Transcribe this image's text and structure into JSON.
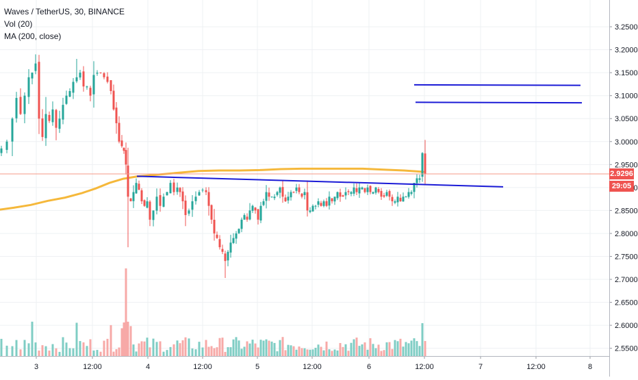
{
  "legend": {
    "symbol": "Waves / TetherUS, 30, BINANCE",
    "volume": "Vol (20)",
    "ma": "MA (200, close)"
  },
  "badges": {
    "last_price": "2.9296",
    "countdown": "29:05"
  },
  "colors": {
    "up": "#26a69a",
    "down": "#ef5350",
    "up_vol": "#7fcdc4",
    "down_vol": "#f7a9a7",
    "ma": "#f5b83b",
    "drawing": "#1a1ad6",
    "price_line": "#f59a87",
    "grid": "#eef0f3",
    "axis_text": "#131722"
  },
  "chart_data": {
    "type": "candlestick",
    "symbol": "Waves / TetherUS",
    "interval": "30",
    "exchange": "BINANCE",
    "y_axis": {
      "ticks": [
        "3.2500",
        "3.2000",
        "3.1500",
        "3.1000",
        "3.0500",
        "3.0000",
        "2.9500",
        "2.9000",
        "2.8500",
        "2.8000",
        "2.7500",
        "2.7000",
        "2.6500",
        "2.6000",
        "2.5500"
      ],
      "ylim": [
        2.545,
        3.265
      ]
    },
    "x_axis": {
      "ticks": [
        "3",
        "12:00",
        "4",
        "12:00",
        "5",
        "12:00",
        "6",
        "12:00",
        "7",
        "12:00",
        "8"
      ]
    },
    "last_price": 2.9296,
    "grid": true,
    "volume_indicator": "Vol (20)",
    "ma_indicator": "MA (200, close)",
    "ma_path": [
      [
        0,
        2.852
      ],
      [
        20,
        2.856
      ],
      [
        45,
        2.862
      ],
      [
        70,
        2.871
      ],
      [
        95,
        2.878
      ],
      [
        120,
        2.888
      ],
      [
        140,
        2.898
      ],
      [
        160,
        2.91
      ],
      [
        180,
        2.919
      ],
      [
        200,
        2.924
      ],
      [
        230,
        2.928
      ],
      [
        260,
        2.932
      ],
      [
        290,
        2.936
      ],
      [
        320,
        2.937
      ],
      [
        350,
        2.937
      ],
      [
        380,
        2.938
      ],
      [
        410,
        2.94
      ],
      [
        440,
        2.941
      ],
      [
        470,
        2.941
      ],
      [
        500,
        2.941
      ],
      [
        530,
        2.941
      ],
      [
        560,
        2.939
      ],
      [
        590,
        2.937
      ],
      [
        610,
        2.935
      ],
      [
        618,
        2.934
      ]
    ],
    "drawings": [
      {
        "type": "trendline",
        "points": [
          [
            200,
            2.9245
          ],
          [
            735,
            2.9015
          ]
        ]
      },
      {
        "type": "horizontal",
        "points": [
          [
            605,
            3.1235
          ],
          [
            848,
            3.1225
          ]
        ]
      },
      {
        "type": "horizontal",
        "points": [
          [
            607,
            3.0855
          ],
          [
            850,
            3.0845
          ]
        ]
      }
    ],
    "candles_anchor_close": [
      [
        2,
        2.985
      ],
      [
        10,
        3.0
      ],
      [
        18,
        3.05
      ],
      [
        24,
        3.095
      ],
      [
        30,
        3.06
      ],
      [
        36,
        3.1
      ],
      [
        42,
        3.14
      ],
      [
        47,
        3.15
      ],
      [
        52,
        3.17
      ],
      [
        57,
        3.05
      ],
      [
        62,
        3.01
      ],
      [
        67,
        3.06
      ],
      [
        72,
        3.045
      ],
      [
        77,
        3.07
      ],
      [
        82,
        3.03
      ],
      [
        87,
        3.05
      ],
      [
        92,
        3.08
      ],
      [
        97,
        3.1
      ],
      [
        102,
        3.11
      ],
      [
        107,
        3.13
      ],
      [
        112,
        3.14
      ],
      [
        117,
        3.15
      ],
      [
        122,
        3.12
      ],
      [
        127,
        3.12
      ],
      [
        132,
        3.1
      ],
      [
        137,
        3.145
      ],
      [
        142,
        3.15
      ],
      [
        147,
        3.15
      ],
      [
        152,
        3.14
      ],
      [
        157,
        3.13
      ],
      [
        162,
        3.11
      ],
      [
        166,
        3.07
      ],
      [
        170,
        3.04
      ],
      [
        174,
        3.0
      ],
      [
        178,
        2.99
      ],
      [
        181,
        2.98
      ],
      [
        184,
        2.95
      ],
      [
        187,
        2.88
      ],
      [
        191,
        2.87
      ],
      [
        195,
        2.89
      ],
      [
        199,
        2.91
      ],
      [
        203,
        2.895
      ],
      [
        207,
        2.87
      ],
      [
        211,
        2.86
      ],
      [
        215,
        2.87
      ],
      [
        219,
        2.83
      ],
      [
        224,
        2.85
      ],
      [
        229,
        2.88
      ],
      [
        234,
        2.86
      ],
      [
        239,
        2.88
      ],
      [
        244,
        2.89
      ],
      [
        249,
        2.91
      ],
      [
        254,
        2.89
      ],
      [
        259,
        2.9
      ],
      [
        263,
        2.89
      ],
      [
        267,
        2.87
      ],
      [
        271,
        2.84
      ],
      [
        276,
        2.85
      ],
      [
        281,
        2.87
      ],
      [
        286,
        2.88
      ],
      [
        291,
        2.89
      ],
      [
        296,
        2.895
      ],
      [
        301,
        2.89
      ],
      [
        305,
        2.86
      ],
      [
        309,
        2.83
      ],
      [
        313,
        2.8
      ],
      [
        317,
        2.79
      ],
      [
        321,
        2.77
      ],
      [
        325,
        2.76
      ],
      [
        329,
        2.74
      ],
      [
        333,
        2.76
      ],
      [
        337,
        2.78
      ],
      [
        341,
        2.79
      ],
      [
        345,
        2.8
      ],
      [
        349,
        2.81
      ],
      [
        353,
        2.83
      ],
      [
        357,
        2.84
      ],
      [
        361,
        2.83
      ],
      [
        365,
        2.85
      ],
      [
        369,
        2.86
      ],
      [
        373,
        2.85
      ],
      [
        377,
        2.83
      ],
      [
        381,
        2.86
      ],
      [
        385,
        2.87
      ],
      [
        389,
        2.89
      ],
      [
        393,
        2.88
      ],
      [
        397,
        2.88
      ],
      [
        401,
        2.88
      ],
      [
        405,
        2.89
      ],
      [
        409,
        2.9
      ],
      [
        413,
        2.88
      ],
      [
        417,
        2.87
      ],
      [
        421,
        2.88
      ],
      [
        425,
        2.89
      ],
      [
        429,
        2.89
      ],
      [
        433,
        2.9
      ],
      [
        437,
        2.89
      ],
      [
        441,
        2.88
      ],
      [
        445,
        2.89
      ],
      [
        449,
        2.85
      ],
      [
        453,
        2.85
      ],
      [
        457,
        2.86
      ],
      [
        461,
        2.86
      ],
      [
        465,
        2.87
      ],
      [
        469,
        2.86
      ],
      [
        473,
        2.87
      ],
      [
        477,
        2.86
      ],
      [
        481,
        2.88
      ],
      [
        485,
        2.87
      ],
      [
        489,
        2.88
      ],
      [
        493,
        2.89
      ],
      [
        497,
        2.88
      ],
      [
        501,
        2.88
      ],
      [
        505,
        2.89
      ],
      [
        509,
        2.89
      ],
      [
        513,
        2.89
      ],
      [
        517,
        2.9
      ],
      [
        521,
        2.89
      ],
      [
        525,
        2.9
      ],
      [
        529,
        2.9
      ],
      [
        533,
        2.89
      ],
      [
        537,
        2.9
      ],
      [
        541,
        2.89
      ],
      [
        545,
        2.89
      ],
      [
        549,
        2.9
      ],
      [
        553,
        2.89
      ],
      [
        557,
        2.88
      ],
      [
        561,
        2.88
      ],
      [
        565,
        2.89
      ],
      [
        569,
        2.88
      ],
      [
        573,
        2.87
      ],
      [
        577,
        2.87
      ],
      [
        581,
        2.88
      ],
      [
        585,
        2.87
      ],
      [
        589,
        2.88
      ],
      [
        593,
        2.88
      ],
      [
        597,
        2.89
      ],
      [
        601,
        2.89
      ],
      [
        605,
        2.91
      ],
      [
        609,
        2.92
      ],
      [
        613,
        2.92
      ],
      [
        617,
        2.975
      ],
      [
        621,
        2.93
      ]
    ]
  }
}
